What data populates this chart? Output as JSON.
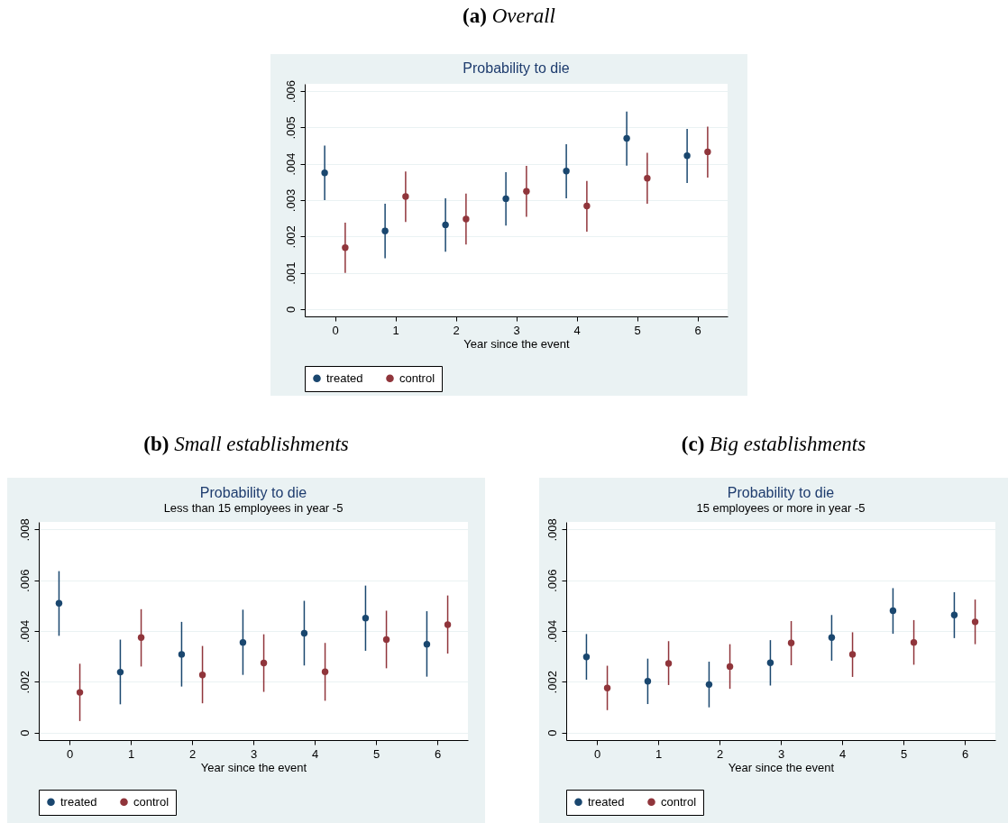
{
  "chart_data": [
    {
      "type": "scatter",
      "title": "Probability to die",
      "xlabel": "Year since the event",
      "annotations": [
        "(a) Overall"
      ],
      "xlim": [
        -0.5,
        6.5
      ],
      "xticks": [
        0,
        1,
        2,
        3,
        4,
        5,
        6
      ],
      "ylim": [
        -0.0002,
        0.0062
      ],
      "yticks": [
        {
          "value": 0,
          "label": "0"
        },
        {
          "value": 0.001,
          "label": ".001"
        },
        {
          "value": 0.002,
          "label": ".002"
        },
        {
          "value": 0.003,
          "label": ".003"
        },
        {
          "value": 0.004,
          "label": ".004"
        },
        {
          "value": 0.005,
          "label": ".005"
        },
        {
          "value": 0.006,
          "label": ".006"
        }
      ],
      "grid": "y",
      "legend": "bottom",
      "marker": "circle",
      "series": [
        {
          "name": "treated",
          "color": "#1a476f",
          "x": [
            -0.17,
            0.83,
            1.83,
            2.83,
            3.83,
            4.83,
            5.83
          ],
          "values": [
            0.00375,
            0.00215,
            0.00232,
            0.00304,
            0.0038,
            0.0047,
            0.00422
          ],
          "errors": [
            [
              0.003,
              0.0045
            ],
            [
              0.0014,
              0.0029
            ],
            [
              0.00158,
              0.00305
            ],
            [
              0.0023,
              0.00377
            ],
            [
              0.00305,
              0.00454
            ],
            [
              0.00395,
              0.00544
            ],
            [
              0.00347,
              0.00496
            ]
          ]
        },
        {
          "name": "control",
          "color": "#90353b",
          "x": [
            0.17,
            1.17,
            2.17,
            3.17,
            4.17,
            5.17,
            6.17
          ],
          "values": [
            0.00169,
            0.0031,
            0.00248,
            0.00324,
            0.00284,
            0.0036,
            0.00433
          ],
          "errors": [
            [
              0.001,
              0.00238
            ],
            [
              0.0024,
              0.00379
            ],
            [
              0.00178,
              0.00318
            ],
            [
              0.00254,
              0.00394
            ],
            [
              0.00213,
              0.00353
            ],
            [
              0.0029,
              0.0043
            ],
            [
              0.00362,
              0.00502
            ]
          ]
        }
      ]
    },
    {
      "type": "scatter",
      "title": "Probability to die",
      "subtitle": "Less than 15 employees in year -5",
      "xlabel": "Year since the event",
      "annotations": [
        "(b) Small establishments"
      ],
      "xlim": [
        -0.5,
        6.5
      ],
      "xticks": [
        0,
        1,
        2,
        3,
        4,
        5,
        6
      ],
      "ylim": [
        -0.0003,
        0.0083
      ],
      "yticks": [
        {
          "value": 0,
          "label": "0"
        },
        {
          "value": 0.002,
          "label": ".002"
        },
        {
          "value": 0.004,
          "label": ".004"
        },
        {
          "value": 0.006,
          "label": ".006"
        },
        {
          "value": 0.008,
          "label": ".008"
        }
      ],
      "grid": "y",
      "legend": "bottom",
      "marker": "circle",
      "series": [
        {
          "name": "treated",
          "color": "#1a476f",
          "x": [
            -0.17,
            0.83,
            1.83,
            2.83,
            3.83,
            4.83,
            5.83
          ],
          "values": [
            0.00509,
            0.00238,
            0.00308,
            0.00355,
            0.00391,
            0.00451,
            0.00348
          ],
          "errors": [
            [
              0.00381,
              0.00636
            ],
            [
              0.00111,
              0.00366
            ],
            [
              0.00181,
              0.00436
            ],
            [
              0.00227,
              0.00484
            ],
            [
              0.00264,
              0.00519
            ],
            [
              0.00322,
              0.00579
            ],
            [
              0.0022,
              0.00478
            ]
          ]
        },
        {
          "name": "control",
          "color": "#90353b",
          "x": [
            0.17,
            1.17,
            2.17,
            3.17,
            4.17,
            5.17,
            6.17
          ],
          "values": [
            0.00158,
            0.00374,
            0.00227,
            0.00274,
            0.00239,
            0.00366,
            0.00425
          ],
          "errors": [
            [
              0.00045,
              0.00271
            ],
            [
              0.0026,
              0.00486
            ],
            [
              0.00115,
              0.00341
            ],
            [
              0.0016,
              0.00387
            ],
            [
              0.00125,
              0.00353
            ],
            [
              0.00253,
              0.0048
            ],
            [
              0.00311,
              0.0054
            ]
          ]
        }
      ]
    },
    {
      "type": "scatter",
      "title": "Probability to die",
      "subtitle": "15 employees or more in year -5",
      "xlabel": "Year since the event",
      "annotations": [
        "(c) Big establishments"
      ],
      "xlim": [
        -0.5,
        6.5
      ],
      "xticks": [
        0,
        1,
        2,
        3,
        4,
        5,
        6
      ],
      "ylim": [
        -0.0003,
        0.0083
      ],
      "yticks": [
        {
          "value": 0,
          "label": "0"
        },
        {
          "value": 0.002,
          "label": ".002"
        },
        {
          "value": 0.004,
          "label": ".004"
        },
        {
          "value": 0.006,
          "label": ".006"
        },
        {
          "value": 0.008,
          "label": ".008"
        }
      ],
      "grid": "y",
      "legend": "bottom",
      "marker": "circle",
      "series": [
        {
          "name": "treated",
          "color": "#1a476f",
          "x": [
            -0.17,
            0.83,
            1.83,
            2.83,
            3.83,
            4.83,
            5.83
          ],
          "values": [
            0.00298,
            0.00202,
            0.00189,
            0.00275,
            0.00374,
            0.0048,
            0.00463
          ],
          "errors": [
            [
              0.00208,
              0.00388
            ],
            [
              0.00112,
              0.00291
            ],
            [
              0.00099,
              0.00279
            ],
            [
              0.00185,
              0.00364
            ],
            [
              0.00283,
              0.00463
            ],
            [
              0.00389,
              0.00569
            ],
            [
              0.00372,
              0.00553
            ]
          ]
        },
        {
          "name": "control",
          "color": "#90353b",
          "x": [
            0.17,
            1.17,
            2.17,
            3.17,
            4.17,
            5.17,
            6.17
          ],
          "values": [
            0.00175,
            0.00272,
            0.0026,
            0.00353,
            0.00308,
            0.00355,
            0.00436
          ],
          "errors": [
            [
              0.00088,
              0.00263
            ],
            [
              0.00187,
              0.0036
            ],
            [
              0.00172,
              0.00348
            ],
            [
              0.00265,
              0.00439
            ],
            [
              0.00219,
              0.00395
            ],
            [
              0.00267,
              0.00443
            ],
            [
              0.00348,
              0.00524
            ]
          ]
        }
      ]
    }
  ]
}
